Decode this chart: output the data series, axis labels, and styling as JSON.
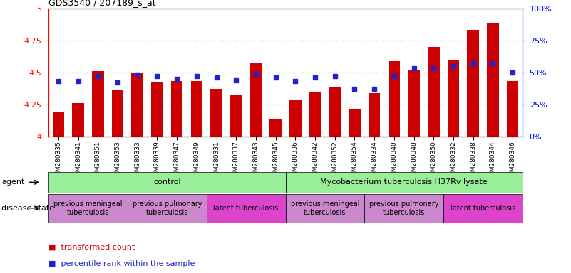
{
  "title": "GDS3540 / 207189_s_at",
  "samples": [
    "GSM280335",
    "GSM280341",
    "GSM280351",
    "GSM280353",
    "GSM280333",
    "GSM280339",
    "GSM280347",
    "GSM280349",
    "GSM280331",
    "GSM280337",
    "GSM280343",
    "GSM280345",
    "GSM280336",
    "GSM280342",
    "GSM280352",
    "GSM280354",
    "GSM280334",
    "GSM280340",
    "GSM280348",
    "GSM280350",
    "GSM280332",
    "GSM280338",
    "GSM280344",
    "GSM280346"
  ],
  "bar_values": [
    4.19,
    4.26,
    4.51,
    4.36,
    4.5,
    4.42,
    4.43,
    4.43,
    4.37,
    4.32,
    4.57,
    4.14,
    4.29,
    4.35,
    4.39,
    4.21,
    4.34,
    4.59,
    4.52,
    4.7,
    4.6,
    4.83,
    4.88,
    4.43
  ],
  "dot_values": [
    43,
    43,
    47,
    42,
    48,
    47,
    45,
    47,
    46,
    44,
    49,
    46,
    43,
    46,
    47,
    37,
    37,
    47,
    53,
    53,
    55,
    57,
    57,
    50
  ],
  "bar_color": "#cc0000",
  "dot_color": "#2222cc",
  "ylim_left": [
    4.0,
    5.0
  ],
  "ylim_right": [
    0,
    100
  ],
  "yticks_left": [
    4.0,
    4.25,
    4.5,
    4.75,
    5.0
  ],
  "yticks_right": [
    0,
    25,
    50,
    75,
    100
  ],
  "ytick_labels_left": [
    "4",
    "4.25",
    "4.5",
    "4.75",
    "5"
  ],
  "ytick_labels_right": [
    "0%",
    "25%",
    "50%",
    "75%",
    "100%"
  ],
  "hlines": [
    4.25,
    4.5,
    4.75
  ],
  "agent_groups": [
    {
      "label": "control",
      "start": 0,
      "end": 12,
      "color": "#99ee99"
    },
    {
      "label": "Mycobacterium tuberculosis H37Rv lysate",
      "start": 12,
      "end": 24,
      "color": "#99ee99"
    }
  ],
  "disease_groups": [
    {
      "label": "previous meningeal\ntuberculosis",
      "start": 0,
      "end": 4,
      "color": "#cc88cc"
    },
    {
      "label": "previous pulmonary\ntuberculosis",
      "start": 4,
      "end": 8,
      "color": "#cc88cc"
    },
    {
      "label": "latent tuberculosis",
      "start": 8,
      "end": 12,
      "color": "#dd44cc"
    },
    {
      "label": "previous meningeal\ntuberculosis",
      "start": 12,
      "end": 16,
      "color": "#cc88cc"
    },
    {
      "label": "previous pulmonary\ntuberculosis",
      "start": 16,
      "end": 20,
      "color": "#cc88cc"
    },
    {
      "label": "latent tuberculosis",
      "start": 20,
      "end": 24,
      "color": "#dd44cc"
    }
  ]
}
